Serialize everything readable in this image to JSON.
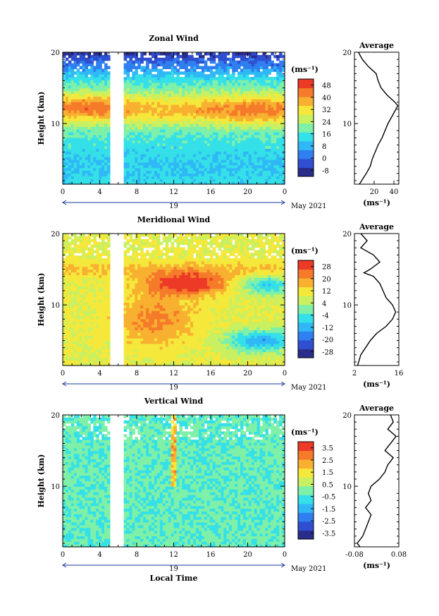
{
  "chart_data": [
    {
      "type": "heatmap",
      "title": "Zonal Wind",
      "ylabel": "Height (km)",
      "x_ticks": [
        "0",
        "4",
        "8",
        "12",
        "16",
        "20",
        "0"
      ],
      "y_ticks": [
        "20",
        "10"
      ],
      "date_label": "19",
      "month_label": "May 2021",
      "xlim": [
        0,
        24
      ],
      "ylim": [
        1.5,
        20
      ],
      "colorbar": {
        "unit": "(ms⁻¹)",
        "ticks": [
          "48",
          "40",
          "32",
          "24",
          "16",
          "8",
          "0",
          "-8"
        ],
        "range": [
          -10,
          52
        ]
      },
      "data_gap_hours": [
        5.0,
        6.7
      ],
      "field_features": [
        {
          "desc": "jet core",
          "t": [
            8,
            24
          ],
          "z": [
            10.5,
            13
          ],
          "value": 46
        },
        {
          "desc": "upper easterly layer",
          "t": [
            0,
            24
          ],
          "z": [
            16,
            20
          ],
          "value": -4
        },
        {
          "desc": "lower troposphere",
          "t": [
            0,
            24
          ],
          "z": [
            2,
            6
          ],
          "value": 10
        }
      ],
      "profile": {
        "title": "Average",
        "xlabel": "(ms⁻¹)",
        "x_ticks": [
          "20",
          "40"
        ],
        "y_ticks": [
          "20",
          "10"
        ],
        "xlim": [
          0,
          45
        ],
        "height_km": [
          1.5,
          3,
          4,
          5,
          6,
          7,
          8,
          9,
          10,
          11,
          12,
          12.5,
          13,
          14,
          15,
          16,
          17,
          18,
          19,
          20
        ],
        "value": [
          5,
          12,
          16,
          18,
          21,
          24,
          28,
          31,
          34,
          38,
          42,
          44,
          41,
          33,
          27,
          24,
          22,
          14,
          8,
          4
        ]
      }
    },
    {
      "type": "heatmap",
      "title": "Meridional Wind",
      "ylabel": "Height (km)",
      "x_ticks": [
        "0",
        "4",
        "8",
        "12",
        "16",
        "20",
        "0"
      ],
      "y_ticks": [
        "20",
        "10"
      ],
      "date_label": "19",
      "month_label": "May 2021",
      "xlim": [
        0,
        24
      ],
      "ylim": [
        1.5,
        20
      ],
      "colorbar": {
        "unit": "(ms⁻¹)",
        "ticks": [
          "28",
          "20",
          "12",
          "4",
          "-4",
          "-12",
          "-20",
          "-28"
        ],
        "range": [
          -30,
          30
        ]
      },
      "data_gap_hours": [
        5.0,
        6.7
      ],
      "field_features": [
        {
          "desc": "northerly maximum",
          "t": [
            10,
            17
          ],
          "z": [
            12,
            14
          ],
          "value": 26
        },
        {
          "desc": "broad positive region",
          "t": [
            7,
            14
          ],
          "z": [
            5,
            11
          ],
          "value": 14
        },
        {
          "desc": "negative region",
          "t": [
            18,
            24
          ],
          "z": [
            3,
            7
          ],
          "value": -10
        },
        {
          "desc": "negative region",
          "t": [
            19,
            24
          ],
          "z": [
            11,
            14
          ],
          "value": -8
        }
      ],
      "profile": {
        "title": "Average",
        "xlabel": "(ms⁻¹)",
        "x_ticks": [
          "2",
          "16"
        ],
        "y_ticks": [
          "20",
          "10"
        ],
        "xlim": [
          2,
          16
        ],
        "height_km": [
          1.5,
          3,
          4,
          5,
          6,
          7,
          8,
          9,
          10,
          11,
          12,
          13,
          14,
          14.5,
          15,
          16,
          17,
          18,
          19,
          20
        ],
        "value": [
          3,
          4,
          5.5,
          7,
          9,
          12,
          14,
          15,
          14,
          12,
          11,
          10,
          8,
          5,
          7,
          10,
          8,
          4,
          6,
          4
        ]
      }
    },
    {
      "type": "heatmap",
      "title": "Vertical Wind",
      "ylabel": "Height (km)",
      "xlabel": "Local Time",
      "x_ticks": [
        "0",
        "4",
        "8",
        "12",
        "16",
        "20",
        "0"
      ],
      "y_ticks": [
        "20",
        "10"
      ],
      "date_label": "19",
      "month_label": "May 2021",
      "xlim": [
        0,
        24
      ],
      "ylim": [
        1.5,
        20
      ],
      "colorbar": {
        "unit": "(ms⁻¹)",
        "ticks": [
          "3.5",
          "2.5",
          "1.5",
          "0.5",
          "-0.5",
          "-1.5",
          "-2.5",
          "-3.5"
        ],
        "range": [
          -4,
          4
        ]
      },
      "data_gap_hours": [
        5.0,
        6.7
      ],
      "field_features": [
        {
          "desc": "near zero background",
          "t": [
            0,
            24
          ],
          "z": [
            1.5,
            20
          ],
          "value": -0.3
        },
        {
          "desc": "upward streak",
          "t": [
            11.7,
            12.3
          ],
          "z": [
            10,
            20
          ],
          "value": 1.8
        }
      ],
      "profile": {
        "title": "Average",
        "xlabel": "(ms⁻¹)",
        "x_ticks": [
          "-0.08",
          "0.08"
        ],
        "y_ticks": [
          "20",
          "10"
        ],
        "xlim": [
          -0.08,
          0.08
        ],
        "height_km": [
          1.5,
          2,
          3,
          4,
          5,
          6,
          7,
          8,
          9,
          10,
          11,
          12,
          13,
          14,
          15,
          16,
          17,
          18,
          19,
          20
        ],
        "value": [
          -0.06,
          -0.07,
          -0.05,
          -0.04,
          -0.03,
          -0.02,
          -0.04,
          -0.02,
          -0.03,
          -0.02,
          0.01,
          0.03,
          0.04,
          0.06,
          0.03,
          0.05,
          0.07,
          0.04,
          0.06,
          0.05
        ]
      }
    }
  ]
}
